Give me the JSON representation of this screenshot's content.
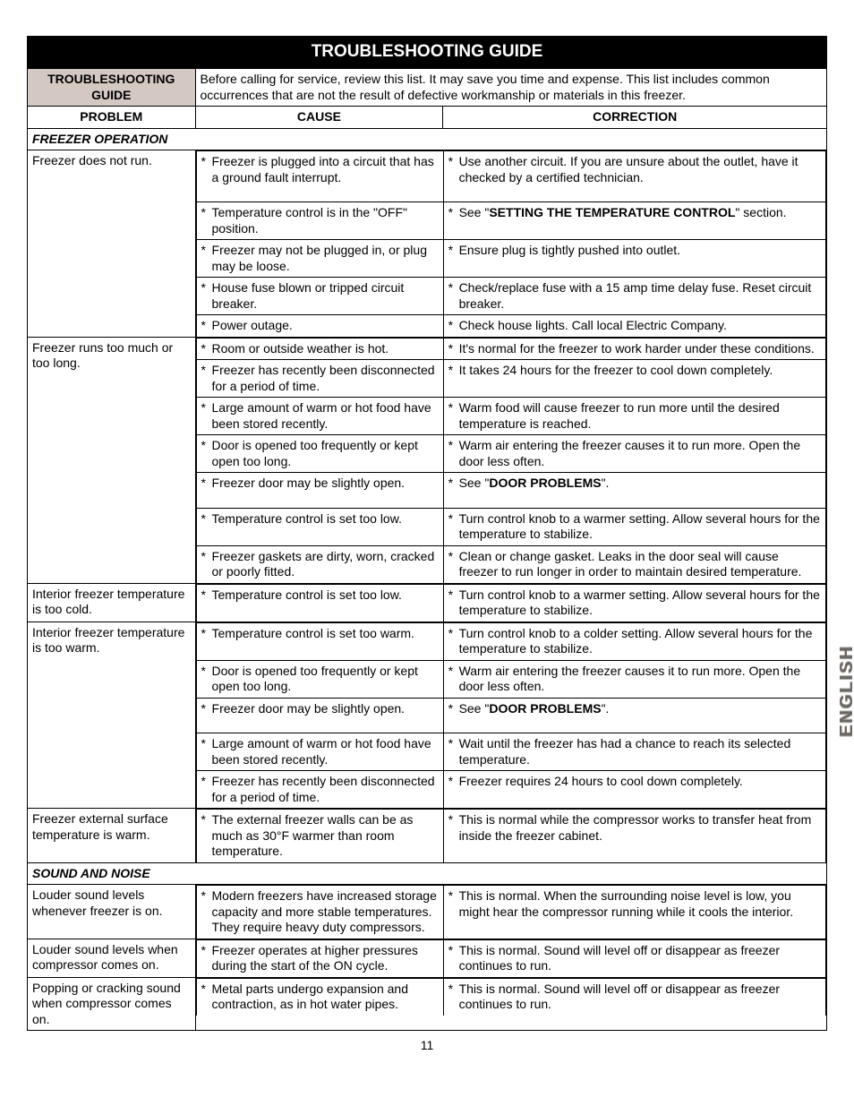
{
  "banner": "TROUBLESHOOTING GUIDE",
  "side_label": "ENGLISH",
  "page_number": "11",
  "headers": {
    "label": "TROUBLESHOOTING GUIDE",
    "description": "Before calling for service, review this list. It may save you time and expense. This list includes common occurrences that are not the result of defective workmanship or materials in this freezer.",
    "problem": "PROBLEM",
    "cause": "CAUSE",
    "correction": "CORRECTION"
  },
  "sections": [
    {
      "title": "FREEZER OPERATION",
      "rows": [
        {
          "problem": "Freezer does not run.",
          "items": [
            {
              "cause": "Freezer is plugged into a circuit that has a ground fault interrupt.",
              "correction": "Use another circuit. If you are unsure about the outlet, have it checked by a certified technician.",
              "pad": true
            },
            {
              "cause": "Temperature control is in the \"OFF\" position.",
              "correction_html": "See \"<b>SETTING THE TEMPERATURE CONTROL</b>\" section."
            },
            {
              "cause": "Freezer may not be plugged in, or plug may be loose.",
              "correction": "Ensure plug is tightly pushed into outlet."
            },
            {
              "cause": "House fuse blown or tripped circuit breaker.",
              "correction": "Check/replace fuse with a 15 amp time delay fuse. Reset circuit breaker."
            },
            {
              "cause": "Power outage.",
              "correction": "Check house lights. Call local Electric Company."
            }
          ]
        },
        {
          "problem": "Freezer runs too much or too long.",
          "items": [
            {
              "cause": "Room or outside weather is hot.",
              "correction": "It's normal for the freezer to work harder under these conditions."
            },
            {
              "cause": "Freezer has recently been disconnected for a period of time.",
              "correction": "It takes 24 hours for the freezer to cool down completely."
            },
            {
              "cause": "Large amount of warm or hot food have been stored recently.",
              "correction": "Warm food will cause freezer to run more until the desired temperature is reached."
            },
            {
              "cause": "Door is opened too frequently or kept open too long.",
              "correction": "Warm air entering the freezer causes it to run more. Open the door less often."
            },
            {
              "cause": "Freezer door may be slightly open.",
              "correction_html": "See \"<b>DOOR PROBLEMS</b>\".",
              "pad": true
            },
            {
              "cause": "Temperature control is set too low.",
              "correction": "Turn control knob to a warmer setting. Allow several hours for the temperature to stabilize."
            },
            {
              "cause": "Freezer gaskets are dirty, worn, cracked or poorly fitted.",
              "correction": "Clean or change gasket. Leaks in the door seal will cause freezer to run longer in order to maintain desired temperature."
            }
          ]
        },
        {
          "problem": "Interior freezer temperature is too cold.",
          "items": [
            {
              "cause": "Temperature control is set too low.",
              "correction": "Turn control knob to a warmer setting. Allow several hours for the temperature to stabilize."
            }
          ]
        },
        {
          "problem": "Interior freezer temperature is too warm.",
          "items": [
            {
              "cause": "Temperature control is set too warm.",
              "correction": "Turn control knob to a colder setting. Allow several hours for the temperature to stabilize."
            },
            {
              "cause": "Door is opened too frequently or kept open too long.",
              "correction": "Warm air entering the freezer causes it to run more. Open the door less often."
            },
            {
              "cause": "Freezer door may be slightly open.",
              "correction_html": "See \"<b>DOOR PROBLEMS</b>\".",
              "pad": true
            },
            {
              "cause": "Large amount of warm or hot food have been stored recently.",
              "correction": "Wait until the freezer has had a chance to reach its selected temperature."
            },
            {
              "cause": "Freezer has recently been disconnected for a period of time.",
              "correction": "Freezer requires 24 hours to cool down completely."
            }
          ]
        },
        {
          "problem": "Freezer external surface temperature is warm.",
          "items": [
            {
              "cause": "The external freezer walls can be as much as 30°F warmer than room temperature.",
              "correction": "This is normal while the compressor works to transfer heat from inside the freezer cabinet."
            }
          ]
        }
      ]
    },
    {
      "title": "SOUND AND NOISE",
      "rows": [
        {
          "problem": "Louder sound levels whenever freezer is on.",
          "items": [
            {
              "cause": "Modern freezers have increased storage capacity and more stable temperatures. They require heavy duty compressors.",
              "correction": "This is normal. When the surrounding noise level is low, you might hear the compressor running while it cools the interior."
            }
          ]
        },
        {
          "problem": "Louder sound levels when compressor comes on.",
          "items": [
            {
              "cause": "Freezer operates at higher pressures during the start of the ON cycle.",
              "correction": "This is normal. Sound will level off or disappear as freezer continues to run."
            }
          ]
        },
        {
          "problem": "Popping or cracking sound when compressor comes on.",
          "items": [
            {
              "cause": "Metal parts undergo expansion and contraction, as in hot water pipes.",
              "correction": "This is normal. Sound will level off or disappear as freezer continues to run."
            }
          ]
        }
      ]
    }
  ]
}
